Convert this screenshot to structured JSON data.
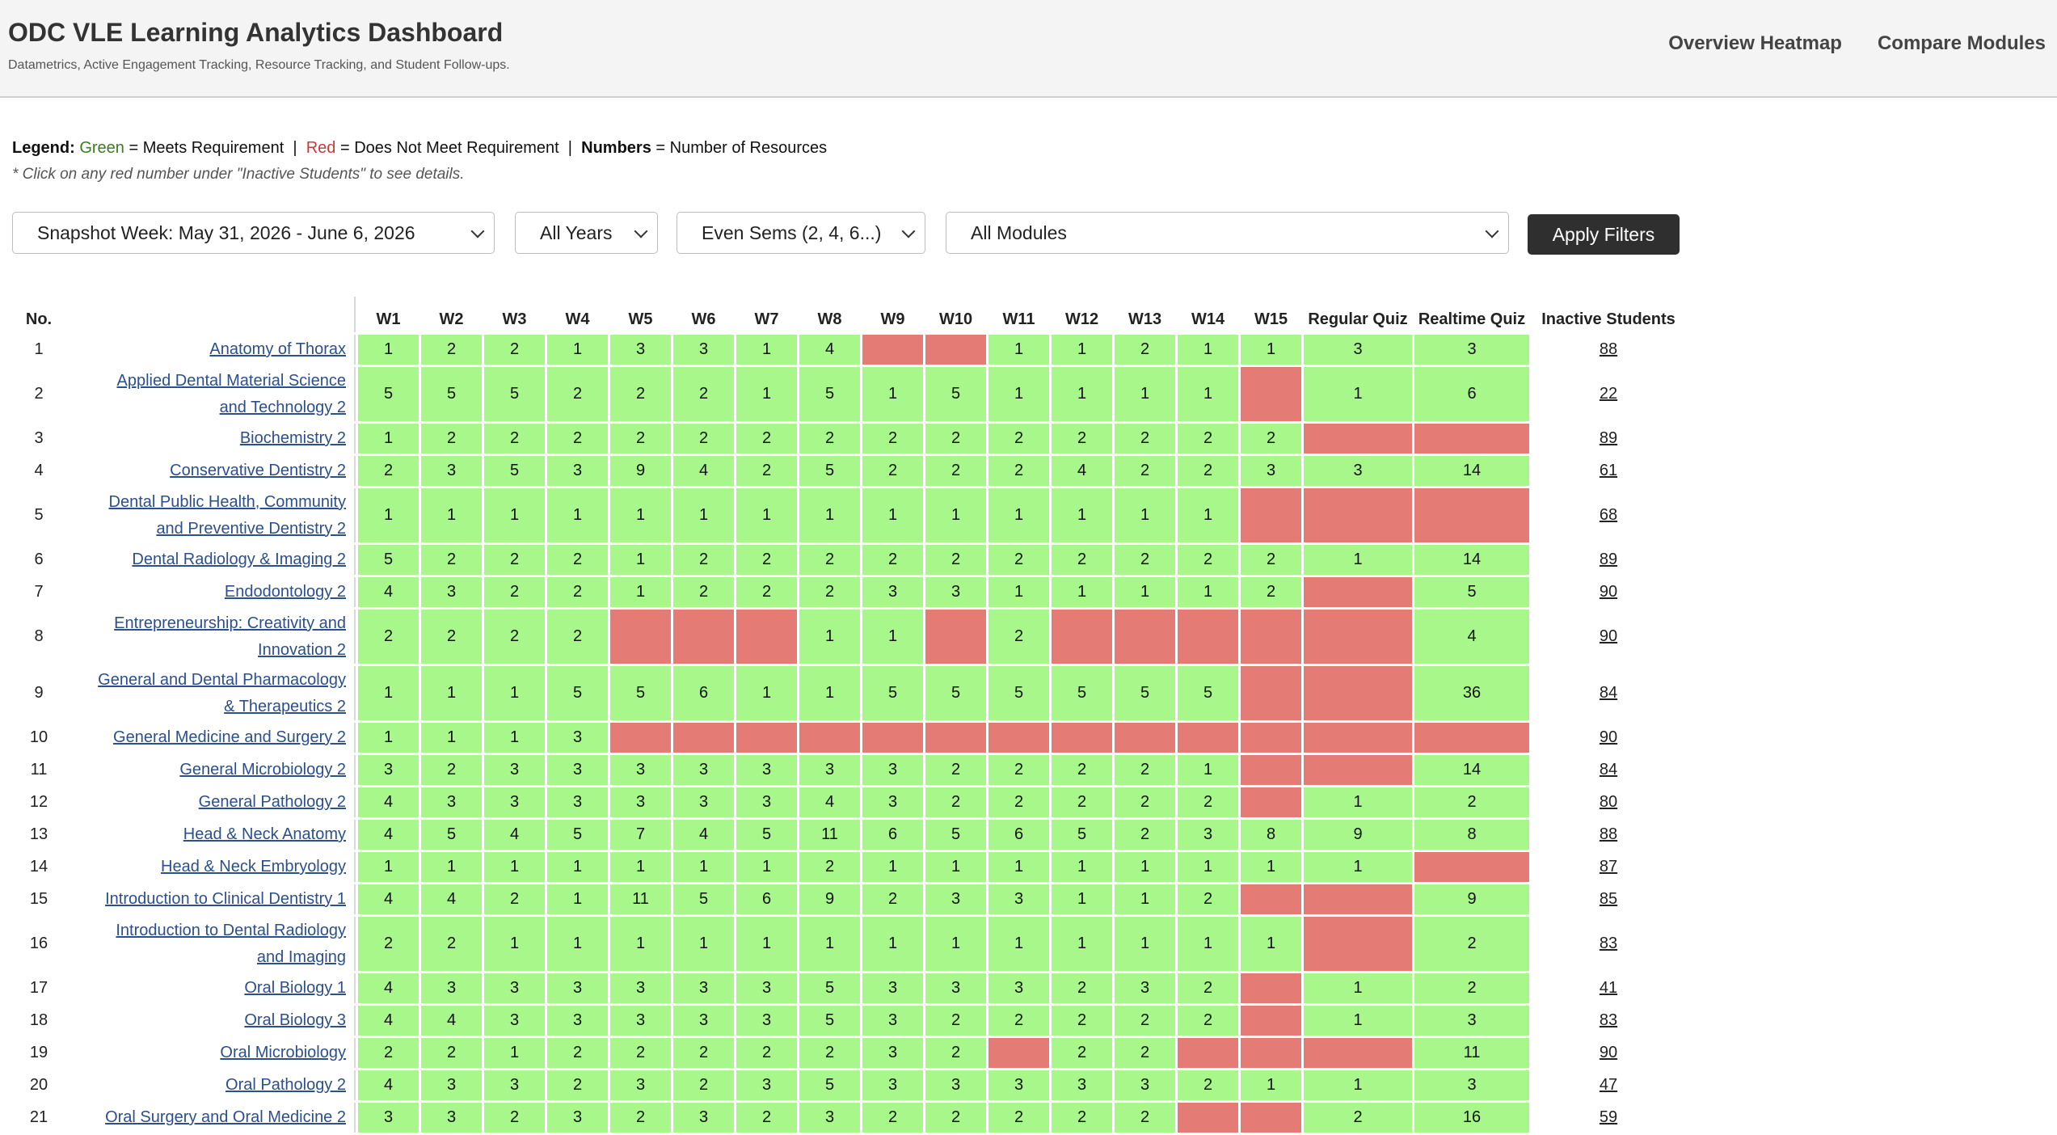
{
  "header": {
    "title": "ODC VLE Learning Analytics Dashboard",
    "subtitle": "Datametrics, Active Engagement Tracking, Resource Tracking, and Student Follow-ups.",
    "nav": [
      "Overview Heatmap",
      "Compare Modules"
    ]
  },
  "legend": {
    "label": "Legend:",
    "green": "Green",
    "green_text": "= Meets Requirement",
    "red": "Red",
    "red_text": "= Does Not Meet Requirement",
    "sep": "|",
    "numbers": "Numbers",
    "numbers_text": "= Number of Resources"
  },
  "hint": "* Click on any red number under \"Inactive Students\" to see details.",
  "filters": {
    "week": "Snapshot Week: May 31, 2026 - June 6, 2026",
    "years": "All Years",
    "sems": "Even Sems (2, 4, 6...)",
    "modules": "All Modules",
    "apply_label": "Apply Filters"
  },
  "colors": {
    "meets": "#a8f78a",
    "fails": "#e57b75"
  },
  "table": {
    "headers": {
      "no": "No.",
      "weeks": [
        "W1",
        "W2",
        "W3",
        "W4",
        "W5",
        "W6",
        "W7",
        "W8",
        "W9",
        "W10",
        "W11",
        "W12",
        "W13",
        "W14",
        "W15"
      ],
      "regular_quiz": "Regular Quiz",
      "realtime_quiz": "Realtime Quiz",
      "inactive": "Inactive Students"
    },
    "rows": [
      {
        "no": "1",
        "module": [
          "Anatomy of Thorax"
        ],
        "cells": [
          "1",
          "2",
          "2",
          "1",
          "3",
          "3",
          "1",
          "4",
          null,
          null,
          "1",
          "1",
          "2",
          "1",
          "1",
          "3",
          "3"
        ],
        "inactive": "88"
      },
      {
        "no": "2",
        "module": [
          "Applied Dental Material Science",
          "and Technology 2"
        ],
        "cells": [
          "5",
          "5",
          "5",
          "2",
          "2",
          "2",
          "1",
          "5",
          "1",
          "5",
          "1",
          "1",
          "1",
          "1",
          null,
          "1",
          "6"
        ],
        "inactive": "22"
      },
      {
        "no": "3",
        "module": [
          "Biochemistry 2"
        ],
        "cells": [
          "1",
          "2",
          "2",
          "2",
          "2",
          "2",
          "2",
          "2",
          "2",
          "2",
          "2",
          "2",
          "2",
          "2",
          "2",
          null,
          null
        ],
        "inactive": "89"
      },
      {
        "no": "4",
        "module": [
          "Conservative Dentistry 2"
        ],
        "cells": [
          "2",
          "3",
          "5",
          "3",
          "9",
          "4",
          "2",
          "5",
          "2",
          "2",
          "2",
          "4",
          "2",
          "2",
          "3",
          "3",
          "14"
        ],
        "inactive": "61"
      },
      {
        "no": "5",
        "module": [
          "Dental Public Health, Community",
          "and Preventive Dentistry 2"
        ],
        "cells": [
          "1",
          "1",
          "1",
          "1",
          "1",
          "1",
          "1",
          "1",
          "1",
          "1",
          "1",
          "1",
          "1",
          "1",
          null,
          null,
          null
        ],
        "inactive": "68"
      },
      {
        "no": "6",
        "module": [
          "Dental Radiology & Imaging 2"
        ],
        "cells": [
          "5",
          "2",
          "2",
          "2",
          "1",
          "2",
          "2",
          "2",
          "2",
          "2",
          "2",
          "2",
          "2",
          "2",
          "2",
          "1",
          "14"
        ],
        "inactive": "89"
      },
      {
        "no": "7",
        "module": [
          "Endodontology 2"
        ],
        "cells": [
          "4",
          "3",
          "2",
          "2",
          "1",
          "2",
          "2",
          "2",
          "3",
          "3",
          "1",
          "1",
          "1",
          "1",
          "2",
          null,
          "5"
        ],
        "inactive": "90"
      },
      {
        "no": "8",
        "module": [
          "Entrepreneurship: Creativity and",
          "Innovation 2"
        ],
        "cells": [
          "2",
          "2",
          "2",
          "2",
          null,
          null,
          null,
          "1",
          "1",
          null,
          "2",
          null,
          null,
          null,
          null,
          null,
          "4"
        ],
        "inactive": "90"
      },
      {
        "no": "9",
        "module": [
          "General and Dental Pharmacology",
          "& Therapeutics 2"
        ],
        "cells": [
          "1",
          "1",
          "1",
          "5",
          "5",
          "6",
          "1",
          "1",
          "5",
          "5",
          "5",
          "5",
          "5",
          "5",
          null,
          null,
          "36"
        ],
        "inactive": "84"
      },
      {
        "no": "10",
        "module": [
          "General Medicine and Surgery 2"
        ],
        "cells": [
          "1",
          "1",
          "1",
          "3",
          null,
          null,
          null,
          null,
          null,
          null,
          null,
          null,
          null,
          null,
          null,
          null,
          null
        ],
        "inactive": "90"
      },
      {
        "no": "11",
        "module": [
          "General Microbiology 2"
        ],
        "cells": [
          "3",
          "2",
          "3",
          "3",
          "3",
          "3",
          "3",
          "3",
          "3",
          "2",
          "2",
          "2",
          "2",
          "1",
          null,
          null,
          "14"
        ],
        "inactive": "84"
      },
      {
        "no": "12",
        "module": [
          "General Pathology 2"
        ],
        "cells": [
          "4",
          "3",
          "3",
          "3",
          "3",
          "3",
          "3",
          "4",
          "3",
          "2",
          "2",
          "2",
          "2",
          "2",
          null,
          "1",
          "2"
        ],
        "inactive": "80"
      },
      {
        "no": "13",
        "module": [
          "Head & Neck Anatomy"
        ],
        "cells": [
          "4",
          "5",
          "4",
          "5",
          "7",
          "4",
          "5",
          "11",
          "6",
          "5",
          "6",
          "5",
          "2",
          "3",
          "8",
          "9",
          "8"
        ],
        "inactive": "88"
      },
      {
        "no": "14",
        "module": [
          "Head & Neck Embryology"
        ],
        "cells": [
          "1",
          "1",
          "1",
          "1",
          "1",
          "1",
          "1",
          "2",
          "1",
          "1",
          "1",
          "1",
          "1",
          "1",
          "1",
          "1",
          null
        ],
        "inactive": "87"
      },
      {
        "no": "15",
        "module": [
          "Introduction to Clinical Dentistry 1"
        ],
        "cells": [
          "4",
          "4",
          "2",
          "1",
          "11",
          "5",
          "6",
          "9",
          "2",
          "3",
          "3",
          "1",
          "1",
          "2",
          null,
          null,
          "9"
        ],
        "inactive": "85"
      },
      {
        "no": "16",
        "module": [
          "Introduction to Dental Radiology",
          "and Imaging"
        ],
        "cells": [
          "2",
          "2",
          "1",
          "1",
          "1",
          "1",
          "1",
          "1",
          "1",
          "1",
          "1",
          "1",
          "1",
          "1",
          "1",
          null,
          "2"
        ],
        "inactive": "83"
      },
      {
        "no": "17",
        "module": [
          "Oral Biology 1"
        ],
        "cells": [
          "4",
          "3",
          "3",
          "3",
          "3",
          "3",
          "3",
          "5",
          "3",
          "3",
          "3",
          "2",
          "3",
          "2",
          null,
          "1",
          "2"
        ],
        "inactive": "41"
      },
      {
        "no": "18",
        "module": [
          "Oral Biology 3"
        ],
        "cells": [
          "4",
          "4",
          "3",
          "3",
          "3",
          "3",
          "3",
          "5",
          "3",
          "2",
          "2",
          "2",
          "2",
          "2",
          null,
          "1",
          "3"
        ],
        "inactive": "83"
      },
      {
        "no": "19",
        "module": [
          "Oral Microbiology"
        ],
        "cells": [
          "2",
          "2",
          "1",
          "2",
          "2",
          "2",
          "2",
          "2",
          "3",
          "2",
          null,
          "2",
          "2",
          null,
          null,
          null,
          "11"
        ],
        "inactive": "90"
      },
      {
        "no": "20",
        "module": [
          "Oral Pathology 2"
        ],
        "cells": [
          "4",
          "3",
          "3",
          "2",
          "3",
          "2",
          "3",
          "5",
          "3",
          "3",
          "3",
          "3",
          "3",
          "2",
          "1",
          "1",
          "3"
        ],
        "inactive": "47"
      },
      {
        "no": "21",
        "module": [
          "Oral Surgery and Oral Medicine 2"
        ],
        "cells": [
          "3",
          "3",
          "2",
          "3",
          "2",
          "3",
          "2",
          "3",
          "2",
          "2",
          "2",
          "2",
          "2",
          null,
          null,
          "2",
          "16"
        ],
        "inactive": "59"
      }
    ]
  }
}
